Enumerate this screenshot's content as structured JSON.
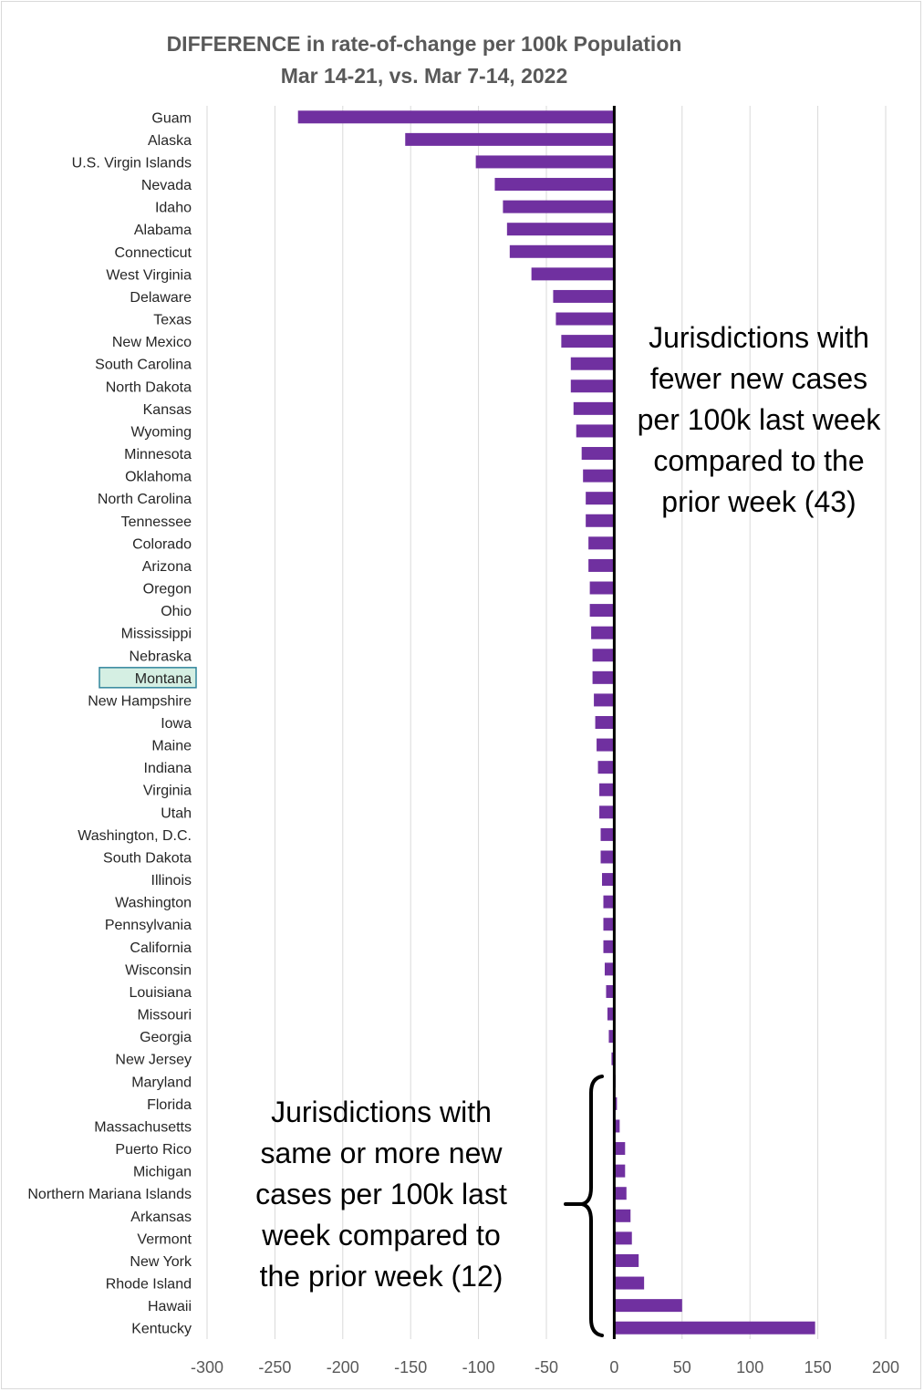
{
  "chart_data": {
    "type": "bar",
    "orientation": "horizontal",
    "title": [
      "DIFFERENCE in rate-of-change per 100k Population",
      "Mar 14-21, vs. Mar 7-14, 2022"
    ],
    "xlabel": "",
    "ylabel": "",
    "xlim": [
      -300,
      200
    ],
    "xticks": [
      "-300",
      "-250",
      "-200",
      "-150",
      "-100",
      "-50",
      "0",
      "50",
      "100",
      "150",
      "200"
    ],
    "grid": "vertical",
    "bar_color": "#7030A0",
    "highlighted_category": "Montana",
    "highlight_fill": "#D5EFE3",
    "highlight_border": "#31859C",
    "categories": [
      "Guam",
      "Alaska",
      "U.S. Virgin Islands",
      "Nevada",
      "Idaho",
      "Alabama",
      "Connecticut",
      "West Virginia",
      "Delaware",
      "Texas",
      "New Mexico",
      "South Carolina",
      "North Dakota",
      "Kansas",
      "Wyoming",
      "Minnesota",
      "Oklahoma",
      "North Carolina",
      "Tennessee",
      "Colorado",
      "Arizona",
      "Oregon",
      "Ohio",
      "Mississippi",
      "Nebraska",
      "Montana",
      "New Hampshire",
      "Iowa",
      "Maine",
      "Indiana",
      "Virginia",
      "Utah",
      "Washington, D.C.",
      "South Dakota",
      "Illinois",
      "Washington",
      "Pennsylvania",
      "California",
      "Wisconsin",
      "Louisiana",
      "Missouri",
      "Georgia",
      "New Jersey",
      "Maryland",
      "Florida",
      "Massachusetts",
      "Puerto Rico",
      "Michigan",
      "Northern Mariana Islands",
      "Arkansas",
      "Vermont",
      "New York",
      "Rhode Island",
      "Hawaii",
      "Kentucky"
    ],
    "values": [
      -233,
      -154,
      -102,
      -88,
      -82,
      -79,
      -77,
      -61,
      -45,
      -43,
      -39,
      -32,
      -32,
      -30,
      -28,
      -24,
      -23,
      -21,
      -21,
      -19,
      -19,
      -18,
      -18,
      -17,
      -16,
      -16,
      -15,
      -14,
      -13,
      -12,
      -11,
      -11,
      -10,
      -10,
      -9,
      -8,
      -8,
      -8,
      -7,
      -6,
      -5,
      -4,
      -2,
      0,
      2,
      4,
      8,
      8,
      9,
      12,
      13,
      18,
      22,
      50,
      148
    ],
    "annotations": [
      {
        "text": [
          "Jurisdictions with",
          "fewer new cases",
          "per 100k last week",
          "compared to the",
          "prior week (43)"
        ]
      },
      {
        "text": [
          "Jurisdictions with",
          "same or more new",
          "cases per 100k last",
          "week compared to",
          "the prior week (12)"
        ]
      }
    ]
  }
}
